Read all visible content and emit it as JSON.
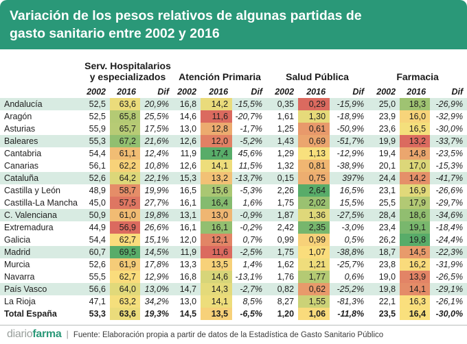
{
  "title": {
    "line1": "Variación de los pesos relativos de algunas partidas de",
    "line2": "gasto sanitario entre 2002 y 2016"
  },
  "colors": {
    "header_bg": "#2A9878",
    "band_bg": "#D8EBE2",
    "heat_min": "#DB6A5F",
    "heat_mid": "#FBE17D",
    "heat_max": "#58AC69"
  },
  "footer": {
    "logo_gray": "diario",
    "logo_green": "farma",
    "separator": "|",
    "source": "Fuente: Elaboración propia a partir de datos de la Estadística de Gasto Sanitario Público"
  },
  "chart_data": {
    "type": "table",
    "title": "Variación de los pesos relativos de algunas partidas de gasto sanitario entre 2002 y 2016",
    "column_groups": [
      {
        "label": "Serv. Hospitalarios\ny especializados"
      },
      {
        "label": "Atención Primaria"
      },
      {
        "label": "Salud Pública"
      },
      {
        "label": "Farmacia"
      }
    ],
    "sub_columns": [
      "2002",
      "2016",
      "Dif"
    ],
    "heatmap": {
      "applies_to": "2016 columns",
      "scale": "per-column 3-color scale: min=red, median=yellow, max=green"
    },
    "rows": [
      {
        "region": "Andalucía",
        "values": [
          "52,5",
          "63,6",
          "20,9%",
          "16,8",
          "14,2",
          "-15,5%",
          "0,35",
          "0,29",
          "-15,9%",
          "25,0",
          "18,3",
          "-26,9%"
        ]
      },
      {
        "region": "Aragón",
        "values": [
          "52,5",
          "65,8",
          "25,5%",
          "14,6",
          "11,6",
          "-20,7%",
          "1,61",
          "1,30",
          "-18,9%",
          "23,9",
          "16,0",
          "-32,9%"
        ]
      },
      {
        "region": "Asturias",
        "values": [
          "55,9",
          "65,7",
          "17,5%",
          "13,0",
          "12,8",
          "-1,7%",
          "1,25",
          "0,61",
          "-50,9%",
          "23,6",
          "16,5",
          "-30,0%"
        ]
      },
      {
        "region": "Baleares",
        "values": [
          "55,3",
          "67,2",
          "21,6%",
          "12,6",
          "12,0",
          "-5,2%",
          "1,43",
          "0,69",
          "-51,7%",
          "19,9",
          "13,2",
          "-33,7%"
        ]
      },
      {
        "region": "Cantabria",
        "values": [
          "54,4",
          "61,1",
          "12,4%",
          "11,9",
          "17,4",
          "45,6%",
          "1,29",
          "1,13",
          "-12,9%",
          "19,4",
          "14,8",
          "-23,5%"
        ]
      },
      {
        "region": "Canarias",
        "values": [
          "56,1",
          "62,2",
          "10,8%",
          "12,6",
          "14,1",
          "11,5%",
          "1,32",
          "0,81",
          "-38,9%",
          "20,1",
          "17,0",
          "-15,3%"
        ]
      },
      {
        "region": "Cataluña",
        "values": [
          "52,6",
          "64,2",
          "22,1%",
          "15,3",
          "13,2",
          "-13,7%",
          "0,15",
          "0,75",
          "397%",
          "24,4",
          "14,2",
          "-41,7%"
        ]
      },
      {
        "region": "Castilla y León",
        "values": [
          "48,9",
          "58,7",
          "19,9%",
          "16,5",
          "15,6",
          "-5,3%",
          "2,26",
          "2,64",
          "16,5%",
          "23,1",
          "16,9",
          "-26,6%"
        ]
      },
      {
        "region": "Castilla-La Mancha",
        "values": [
          "45,0",
          "57,5",
          "27,7%",
          "16,1",
          "16,4",
          "1,6%",
          "1,75",
          "2,02",
          "15,5%",
          "25,5",
          "17,9",
          "-29,7%"
        ]
      },
      {
        "region": "C. Valenciana",
        "values": [
          "50,9",
          "61,0",
          "19,8%",
          "13,1",
          "13,0",
          "-0,9%",
          "1,87",
          "1,36",
          "-27,5%",
          "28,4",
          "18,6",
          "-34,6%"
        ]
      },
      {
        "region": "Extremadura",
        "values": [
          "44,9",
          "56,9",
          "26,6%",
          "16,1",
          "16,1",
          "-0,2%",
          "2,42",
          "2,35",
          "-3,0%",
          "23,4",
          "19,1",
          "-18,4%"
        ]
      },
      {
        "region": "Galicia",
        "values": [
          "54,4",
          "62,7",
          "15,1%",
          "12,0",
          "12,1",
          "0,7%",
          "0,99",
          "0,99",
          "0,5%",
          "26,2",
          "19,8",
          "-24,4%"
        ]
      },
      {
        "region": "Madrid",
        "values": [
          "60,7",
          "69,5",
          "14,5%",
          "11,9",
          "11,6",
          "-2,5%",
          "1,75",
          "1,07",
          "-38,8%",
          "18,7",
          "14,5",
          "-22,3%"
        ]
      },
      {
        "region": "Murcia",
        "values": [
          "52,6",
          "61,9",
          "17,8%",
          "13,3",
          "13,5",
          "1,4%",
          "1,62",
          "1,21",
          "-25,7%",
          "23,8",
          "16,2",
          "-31,9%"
        ]
      },
      {
        "region": "Navarra",
        "values": [
          "55,5",
          "62,7",
          "12,9%",
          "16,8",
          "14,6",
          "-13,1%",
          "1,76",
          "1,77",
          "0,6%",
          "19,0",
          "13,9",
          "-26,5%"
        ]
      },
      {
        "region": "País Vasco",
        "values": [
          "56,6",
          "64,0",
          "13,0%",
          "14,7",
          "14,3",
          "-2,7%",
          "0,82",
          "0,62",
          "-25,2%",
          "19,8",
          "14,1",
          "-29,1%"
        ]
      },
      {
        "region": "La Rioja",
        "values": [
          "47,1",
          "63,2",
          "34,2%",
          "13,0",
          "14,1",
          "8,5%",
          "8,27",
          "1,55",
          "-81,3%",
          "22,1",
          "16,3",
          "-26,1%"
        ]
      },
      {
        "region": "Total España",
        "values": [
          "53,3",
          "63,6",
          "19,3%",
          "14,5",
          "13,5",
          "-6,5%",
          "1,20",
          "1,06",
          "-11,8%",
          "23,5",
          "16,4",
          "-30,0%"
        ]
      }
    ]
  }
}
